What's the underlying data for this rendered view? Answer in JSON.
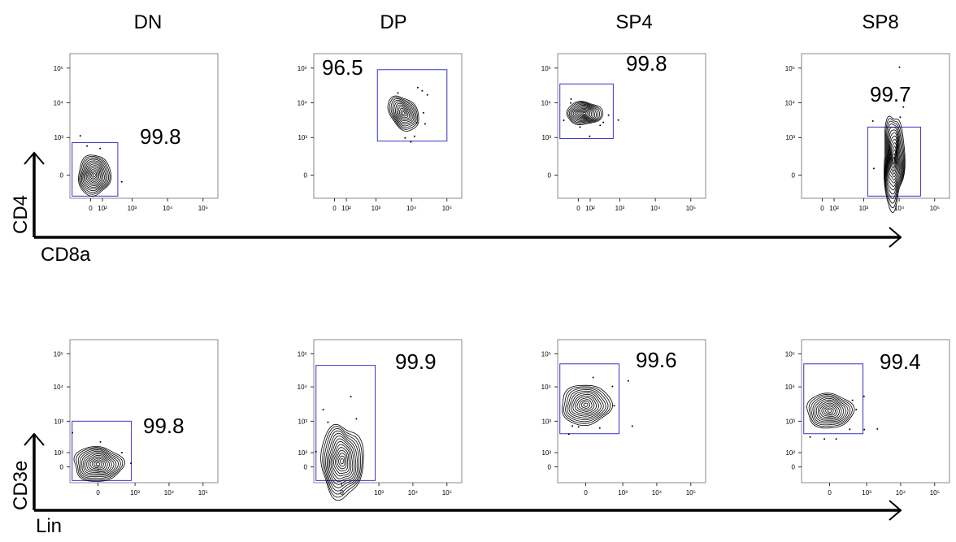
{
  "figure": {
    "column_labels": [
      "DN",
      "DP",
      "SP4",
      "SP8"
    ],
    "row_axes": [
      {
        "x_label": "CD8a",
        "y_label": "CD4"
      },
      {
        "x_label": "Lin",
        "y_label": "CD3e"
      }
    ]
  },
  "colors": {
    "gate": "#3535c8",
    "contour": "#000000",
    "axis": "#000000"
  },
  "chart_data": [
    {
      "type": "contour",
      "row": 0,
      "column": "DN",
      "x_axis": "CD8a",
      "y_axis": "CD4",
      "x_ticks": [
        "0",
        "10²",
        "10³",
        "10⁴",
        "10⁵"
      ],
      "y_ticks": [
        "0",
        "10³",
        "10⁴",
        "10⁵"
      ],
      "gate": {
        "x_range": [
          "min",
          330
        ],
        "y_range": [
          "min",
          600
        ]
      },
      "gate_percent": 99.8,
      "population_center": {
        "x": 30,
        "y": 0
      }
    },
    {
      "type": "contour",
      "row": 0,
      "column": "DP",
      "x_axis": "CD8a",
      "y_axis": "CD4",
      "x_ticks": [
        "0",
        "10²",
        "10³",
        "10⁴",
        "10⁵"
      ],
      "y_ticks": [
        "0",
        "10³",
        "10⁴",
        "10⁵"
      ],
      "gate": {
        "x_range": [
          1100,
          100000
        ],
        "y_range": [
          700,
          90000
        ]
      },
      "gate_percent": 96.5,
      "population_center": {
        "x": 6000,
        "y": 5000
      }
    },
    {
      "type": "contour",
      "row": 0,
      "column": "SP4",
      "x_axis": "CD8a",
      "y_axis": "CD4",
      "x_ticks": [
        "0",
        "10²",
        "10³",
        "10⁴",
        "10⁵"
      ],
      "y_ticks": [
        "0",
        "10³",
        "10⁴",
        "10⁵"
      ],
      "gate": {
        "x_range": [
          "min",
          600
        ],
        "y_range": [
          900,
          35000
        ]
      },
      "gate_percent": 99.8,
      "population_center": {
        "x": 50,
        "y": 5000
      }
    },
    {
      "type": "contour",
      "row": 0,
      "column": "SP8",
      "x_axis": "CD8a",
      "y_axis": "CD4",
      "x_ticks": [
        "0",
        "10²",
        "10³",
        "10⁴",
        "10⁵"
      ],
      "y_ticks": [
        "0",
        "10³",
        "10⁴",
        "10⁵"
      ],
      "gate": {
        "x_range": [
          1300,
          40000
        ],
        "y_range": [
          "min",
          2000
        ]
      },
      "gate_percent": 99.7,
      "population_center": {
        "x": 7000,
        "y": 100
      }
    },
    {
      "type": "contour",
      "row": 1,
      "column": "DN",
      "x_axis": "Lin",
      "y_axis": "CD3e",
      "x_ticks": [
        "0",
        "10³",
        "10⁴",
        "10⁵"
      ],
      "y_ticks": [
        "0",
        "10²",
        "10³",
        "10⁴",
        "10⁵"
      ],
      "gate": {
        "x_range": [
          "min",
          700
        ],
        "y_range": [
          "min",
          1000
        ]
      },
      "gate_percent": 99.8,
      "population_center": {
        "x": 0,
        "y": 20
      }
    },
    {
      "type": "contour",
      "row": 1,
      "column": "DP",
      "x_axis": "Lin",
      "y_axis": "CD3e",
      "x_ticks": [
        "0",
        "10³",
        "10⁴",
        "10⁵"
      ],
      "y_ticks": [
        "0",
        "10²",
        "10³",
        "10⁴",
        "10⁵"
      ],
      "gate": {
        "x_range": [
          "min",
          700
        ],
        "y_range": [
          "min",
          45000
        ]
      },
      "gate_percent": 99.9,
      "population_center": {
        "x": 0,
        "y": 40
      }
    },
    {
      "type": "contour",
      "row": 1,
      "column": "SP4",
      "x_axis": "Lin",
      "y_axis": "CD3e",
      "x_ticks": [
        "0",
        "10³",
        "10⁴",
        "10⁵"
      ],
      "y_ticks": [
        "0",
        "10²",
        "10³",
        "10⁴",
        "10⁵"
      ],
      "gate": {
        "x_range": [
          "min",
          700
        ],
        "y_range": [
          400,
          50000
        ]
      },
      "gate_percent": 99.6,
      "population_center": {
        "x": 0,
        "y": 3000
      }
    },
    {
      "type": "contour",
      "row": 1,
      "column": "SP8",
      "x_axis": "Lin",
      "y_axis": "CD3e",
      "x_ticks": [
        "0",
        "10³",
        "10⁴",
        "10⁵"
      ],
      "y_ticks": [
        "0",
        "10²",
        "10³",
        "10⁴",
        "10⁵"
      ],
      "gate": {
        "x_range": [
          "min",
          700
        ],
        "y_range": [
          400,
          50000
        ]
      },
      "gate_percent": 99.4,
      "population_center": {
        "x": 0,
        "y": 2000
      }
    }
  ]
}
